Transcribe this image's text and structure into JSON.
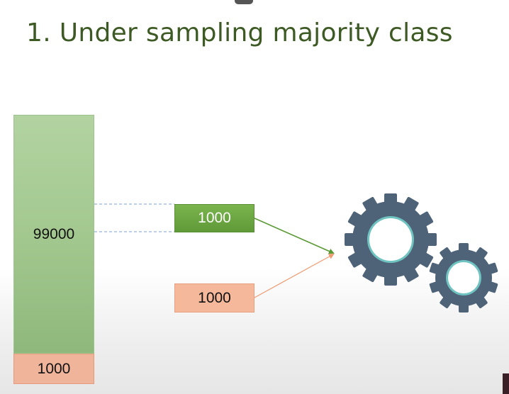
{
  "title": "1. Under sampling majority class",
  "bars": {
    "majority": {
      "value": "99000",
      "color": "#a3c88f"
    },
    "minority": {
      "value": "1000",
      "color": "#f0b49a"
    }
  },
  "sampled": {
    "majority_sample": {
      "value": "1000",
      "color": "#6aa641"
    },
    "minority_sample": {
      "value": "1000",
      "color": "#f5b89a"
    }
  },
  "model": {
    "icon": "gears-icon",
    "color": "#4e6378",
    "accent": "#6fc3c0"
  }
}
